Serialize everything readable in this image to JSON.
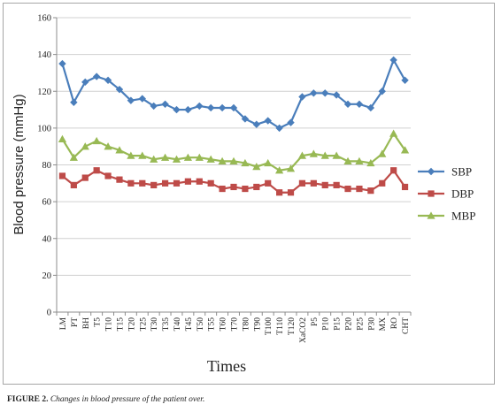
{
  "chart_data": {
    "type": "line",
    "ylabel": "Blood pressure (mmHg)",
    "xlabel": "Times",
    "ylim": [
      0,
      160
    ],
    "yticks": [
      0,
      20,
      40,
      60,
      80,
      100,
      120,
      140,
      160
    ],
    "grid": "horizontal",
    "legend": "right",
    "categories": [
      "LM",
      "PT",
      "BH",
      "T5",
      "T10",
      "T15",
      "T20",
      "T25",
      "T30",
      "T35",
      "T40",
      "T45",
      "T50",
      "T55",
      "T60",
      "T70",
      "T80",
      "T90",
      "T100",
      "T110",
      "T120",
      "XaCO2",
      "P5",
      "P10",
      "P15",
      "P20",
      "P25",
      "P30",
      "MX",
      "RO",
      "CHT"
    ],
    "series": [
      {
        "name": "SBP",
        "color": "#4a7ebb",
        "marker": "diamond",
        "values": [
          135,
          114,
          125,
          128,
          126,
          121,
          115,
          116,
          112,
          113,
          110,
          110,
          112,
          111,
          111,
          111,
          105,
          102,
          104,
          100,
          103,
          117,
          119,
          119,
          118,
          113,
          113,
          111,
          120,
          137,
          126
        ]
      },
      {
        "name": "DBP",
        "color": "#be4b48",
        "marker": "square",
        "values": [
          74,
          69,
          73,
          77,
          74,
          72,
          70,
          70,
          69,
          70,
          70,
          71,
          71,
          70,
          67,
          68,
          67,
          68,
          70,
          65,
          65,
          70,
          70,
          69,
          69,
          67,
          67,
          66,
          70,
          77,
          68
        ]
      },
      {
        "name": "MBP",
        "color": "#98b954",
        "marker": "triangle",
        "values": [
          94,
          84,
          90,
          93,
          90,
          88,
          85,
          85,
          83,
          84,
          83,
          84,
          84,
          83,
          82,
          82,
          81,
          79,
          81,
          77,
          78,
          85,
          86,
          85,
          85,
          82,
          82,
          81,
          86,
          97,
          88
        ]
      }
    ]
  },
  "caption": {
    "label": "FIGURE 2.",
    "text": "Changes in blood pressure of the patient over."
  }
}
